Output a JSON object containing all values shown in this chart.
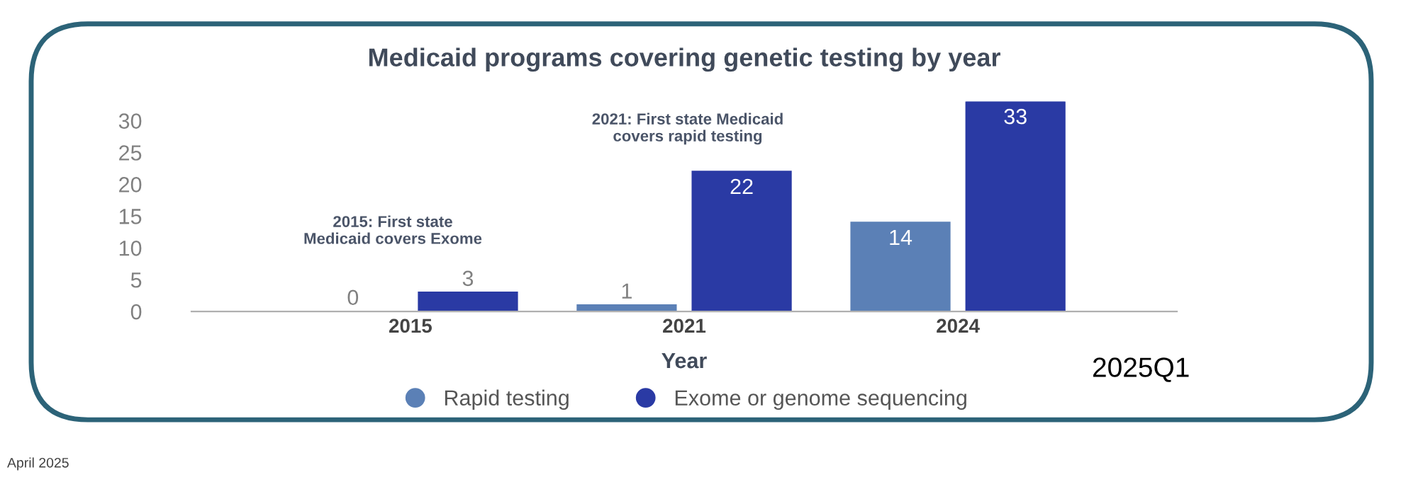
{
  "chart_data": {
    "type": "bar",
    "title": "Medicaid programs covering genetic testing by year",
    "xlabel": "Year",
    "categories": [
      "2015",
      "2021",
      "2024"
    ],
    "series": [
      {
        "name": "Rapid testing",
        "color": "#5b80b6",
        "values": [
          0,
          1,
          14
        ]
      },
      {
        "name": "Exome or genome sequencing",
        "color": "#2a3aa4",
        "values": [
          3,
          22,
          33
        ]
      }
    ],
    "ylim": [
      0,
      33
    ],
    "yticks": [
      0,
      5,
      10,
      15,
      20,
      25,
      30
    ],
    "grid": false,
    "legend": "bottom",
    "marker": "circle",
    "data_labels": true,
    "annotations": [
      "2015: First state\nMedicaid covers Exome",
      "2021: First state Medicaid\ncovers rapid testing",
      "2025Q1",
      "April 2025"
    ]
  }
}
